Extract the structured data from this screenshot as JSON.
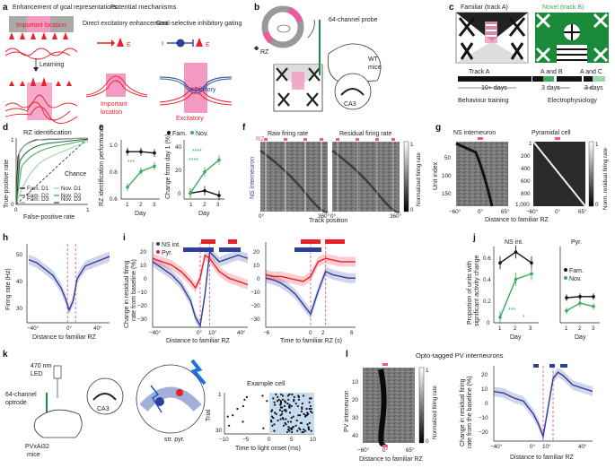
{
  "panels": {
    "a": {
      "label": "a",
      "title": "Enhancement of goal representations",
      "important": "Important location",
      "learning": "Learning",
      "mech_title": "Potential mechanisms",
      "direct": "Direct excitatory enhancement",
      "gating": "Goal-selective inhibitory gating",
      "important2": "Important location",
      "inhibitory": "Inhibitory",
      "excitatory": "Excitatory",
      "E": "E",
      "I": "I"
    },
    "b": {
      "label": "b",
      "rz": "RZ",
      "probe": "64-channel probe",
      "wt": "WT mice",
      "ca3": "CA3"
    },
    "c": {
      "label": "c",
      "familiar": "Familiar (track A)",
      "novel": "Novel (track B)",
      "trackA": "Track A",
      "AandB": "A and B",
      "AandC": "A and C",
      "days10": "10+ days",
      "days3a": "3 days",
      "days3b": "3 days",
      "behaviour": "Behaviour training",
      "ephys": "Electrophysiology"
    },
    "d": {
      "label": "d",
      "title": "RZ identification",
      "xlabel": "False-positive rate",
      "ylabel": "True-positive rate",
      "chance": "Chance"
    },
    "e": {
      "label": "e",
      "ylabel_left": "RZ identification performance",
      "ylabel_right": "Change from day 1 (%)",
      "xlabel": "Day",
      "fam": "Fam.",
      "nov": "Nov.",
      "stars": "***",
      "stars4": "****"
    },
    "f": {
      "label": "f",
      "raw": "Raw firing rate",
      "residual": "Residual firing rate",
      "rz": "RZ",
      "ns": "NS interneuron",
      "xlabel": "Track position",
      "cbar": "Normalized firing rate"
    },
    "g": {
      "label": "g",
      "ns": "NS interneuron",
      "pyr": "Pyramidal cell",
      "ylabel": "Unit index",
      "xlabel": "Distance to familiar RZ",
      "cbar": "Norm. residual firing rate"
    },
    "h": {
      "label": "h",
      "ylabel": "Firing rate (Hz)",
      "xlabel": "Distance to familiar RZ"
    },
    "i": {
      "label": "i",
      "ns": "NS int.",
      "pyr": "Pyr.",
      "ylabel": "Change in residual firing rate from baseline (%)",
      "xlabel1": "Distance to familiar RZ",
      "xlabel2": "Time to familiar RZ (s)"
    },
    "j": {
      "label": "j",
      "ns": "NS int.",
      "pyr": "Pyr.",
      "ylabel": "Proportion of units with significant activity change",
      "xlabel": "Day",
      "fam": "Fam.",
      "nov": "Nov.",
      "stars": "***",
      "star": "*"
    },
    "k": {
      "label": "k",
      "led": "470 nm LED",
      "optrode": "64-channel optrode",
      "mice": "PVxAi32 mice",
      "ca3": "CA3",
      "strpyr": "str. pyr.",
      "example": "Example cell",
      "ylabel": "Trial",
      "xlabel": "Time to light onset (ms)"
    },
    "l": {
      "label": "l",
      "title": "Opto-tagged PV interneurons",
      "ylabel": "PV interneuron",
      "xlabel": "Distance to familiar RZ",
      "cbar": "Normalized firing rate",
      "ylabel2": "Change in residual firing rate from the baseline (%)",
      "xlabel2": "Distance to familiar RZ"
    }
  },
  "ticks": {
    "d_x": [
      "0",
      "1"
    ],
    "d_y": [
      "0",
      "1"
    ],
    "e_left_y": [
      "0.6",
      "0.8",
      "1.0"
    ],
    "e_right_y": [
      "0",
      "20",
      "40"
    ],
    "days": [
      "1",
      "2",
      "3"
    ],
    "f_x": [
      "0°",
      "360°",
      "0°",
      "360°"
    ],
    "f_cbar": [
      "1",
      "0"
    ],
    "g_y1": [
      "50",
      "100",
      "150"
    ],
    "g_y2": [
      "1",
      "200",
      "400",
      "600",
      "800",
      "1,000"
    ],
    "g_x": [
      "−60°",
      "0°",
      "65°",
      "−60°",
      "0°",
      "65°"
    ],
    "g_cbar": [
      "1",
      "0"
    ],
    "h_y": [
      "30",
      "40",
      "50"
    ],
    "h_x": [
      "−40°",
      "0°",
      "40°"
    ],
    "i_y": [
      "20",
      "10",
      "0",
      "−10",
      "−20",
      "−30"
    ],
    "i_x1": [
      "−40°",
      "0°",
      "10°",
      "40°"
    ],
    "i_x2": [
      "−6",
      "0",
      "2",
      "6"
    ],
    "j_y": [
      "0",
      "0.2",
      "0.4",
      "0.6"
    ],
    "k_y": [
      "1",
      "30"
    ],
    "k_x": [
      "−10",
      "−5",
      "0",
      "5",
      "10"
    ],
    "l_y": [
      "10",
      "20",
      "30",
      "40"
    ],
    "l_x": [
      "−60°",
      "0°",
      "65°"
    ],
    "l_cbar": [
      "1",
      "0"
    ],
    "l2_y": [
      "20",
      "10",
      "0",
      "−10",
      "−20"
    ],
    "l2_x": [
      "−40°",
      "0°",
      "10°",
      "40°"
    ]
  },
  "colors": {
    "red": "#e8202a",
    "blue": "#2e3e9b",
    "green": "#3caa5a",
    "pink": "#ec5a9c",
    "lightgreen": "#9bd6a6"
  },
  "chart_data": [
    {
      "panel": "d",
      "type": "line",
      "title": "RZ identification",
      "xlabel": "False-positive rate",
      "ylabel": "True-positive rate",
      "series": [
        "Fam. D1",
        "Fam. D2",
        "Fam. D3",
        "Nov. D1",
        "Nov. D2",
        "Nov. D3"
      ]
    },
    {
      "panel": "e-left",
      "type": "line",
      "xlabel": "Day",
      "ylabel": "RZ identification performance",
      "x": [
        1,
        2,
        3
      ],
      "series": [
        {
          "name": "Fam.",
          "values": [
            0.91,
            0.91,
            0.9
          ]
        },
        {
          "name": "Nov.",
          "values": [
            0.64,
            0.76,
            0.8
          ]
        }
      ],
      "ylim": [
        0.55,
        1.0
      ]
    },
    {
      "panel": "e-right",
      "type": "line",
      "xlabel": "Day",
      "ylabel": "Change from day 1 (%)",
      "x": [
        1,
        2,
        3
      ],
      "series": [
        {
          "name": "Fam.",
          "values": [
            0,
            2,
            -2
          ]
        },
        {
          "name": "Nov.",
          "values": [
            0,
            18,
            28
          ]
        }
      ],
      "ylim": [
        -5,
        45
      ]
    },
    {
      "panel": "h",
      "type": "line",
      "xlabel": "Distance to familiar RZ",
      "ylabel": "Firing rate (Hz)",
      "x": [
        -50,
        -40,
        -30,
        -20,
        -10,
        -5,
        0,
        5,
        10,
        20,
        30,
        40,
        50
      ],
      "values": [
        50,
        49,
        47,
        45,
        41,
        38,
        34,
        37,
        44,
        48,
        49,
        50,
        51
      ],
      "ylim": [
        30,
        55
      ]
    },
    {
      "panel": "i-left",
      "type": "line",
      "xlabel": "Distance to familiar RZ",
      "ylabel": "Change in residual firing rate from baseline (%)",
      "x": [
        -50,
        -40,
        -30,
        -20,
        -10,
        -5,
        0,
        5,
        10,
        20,
        30,
        40,
        50
      ],
      "series": [
        {
          "name": "NS int.",
          "values": [
            10,
            6,
            2,
            -4,
            -14,
            -24,
            -29,
            -10,
            16,
            10,
            12,
            14,
            12
          ]
        },
        {
          "name": "Pyr.",
          "values": [
            12,
            10,
            8,
            4,
            -2,
            -6,
            0,
            14,
            12,
            4,
            0,
            -2,
            -4
          ]
        }
      ],
      "ylim": [
        -30,
        22
      ]
    },
    {
      "panel": "i-right",
      "type": "line",
      "xlabel": "Time to familiar RZ (s)",
      "ylabel": "Change in residual firing rate from baseline (%)",
      "x": [
        -6,
        -5,
        -4,
        -3,
        -2,
        -1,
        0,
        1,
        2,
        3,
        4,
        5,
        6
      ],
      "series": [
        {
          "name": "NS int.",
          "values": [
            0,
            -1,
            -3,
            -6,
            -10,
            -16,
            -22,
            -8,
            4,
            2,
            1,
            0,
            0
          ]
        },
        {
          "name": "Pyr.",
          "values": [
            2,
            1,
            1,
            0,
            -1,
            -2,
            1,
            10,
            12,
            11,
            10,
            10,
            10
          ]
        }
      ],
      "ylim": [
        -30,
        22
      ]
    },
    {
      "panel": "j-left",
      "type": "line",
      "title": "NS int.",
      "xlabel": "Day",
      "x": [
        1,
        2,
        3
      ],
      "series": [
        {
          "name": "Fam.",
          "values": [
            0.55,
            0.65,
            0.55
          ]
        },
        {
          "name": "Nov.",
          "values": [
            0.05,
            0.4,
            0.45
          ]
        }
      ],
      "ylim": [
        0,
        0.7
      ]
    },
    {
      "panel": "j-right",
      "type": "line",
      "title": "Pyr.",
      "xlabel": "Day",
      "x": [
        1,
        2,
        3
      ],
      "series": [
        {
          "name": "Fam.",
          "values": [
            0.23,
            0.24,
            0.24
          ]
        },
        {
          "name": "Nov.",
          "values": [
            0.11,
            0.18,
            0.15
          ]
        }
      ],
      "ylim": [
        0,
        0.7
      ]
    },
    {
      "panel": "l-right",
      "type": "line",
      "xlabel": "Distance to familiar RZ",
      "ylabel": "Change in residual firing rate from the baseline (%)",
      "x": [
        -50,
        -40,
        -30,
        -20,
        -10,
        -5,
        0,
        5,
        10,
        15,
        20,
        30,
        40,
        50
      ],
      "values": [
        6,
        5,
        2,
        0,
        -8,
        -14,
        -22,
        -4,
        14,
        18,
        16,
        10,
        8,
        6
      ],
      "ylim": [
        -25,
        22
      ]
    }
  ]
}
